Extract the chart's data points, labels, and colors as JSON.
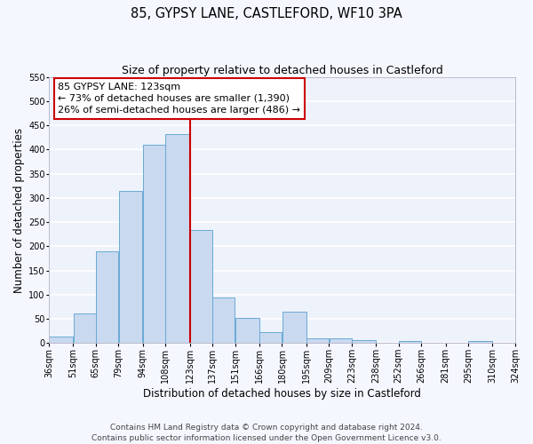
{
  "title": "85, GYPSY LANE, CASTLEFORD, WF10 3PA",
  "subtitle": "Size of property relative to detached houses in Castleford",
  "xlabel": "Distribution of detached houses by size in Castleford",
  "ylabel": "Number of detached properties",
  "bar_color": "#c9d9f0",
  "bar_edge_color": "#6aaad4",
  "background_color": "#eef2fb",
  "grid_color": "#ffffff",
  "bins": [
    36,
    51,
    65,
    79,
    94,
    108,
    123,
    137,
    151,
    166,
    180,
    195,
    209,
    223,
    238,
    252,
    266,
    281,
    295,
    310,
    324
  ],
  "counts": [
    13,
    61,
    190,
    315,
    410,
    432,
    234,
    95,
    53,
    23,
    65,
    10,
    10,
    7,
    0,
    4,
    0,
    0,
    4,
    0
  ],
  "bin_labels": [
    "36sqm",
    "51sqm",
    "65sqm",
    "79sqm",
    "94sqm",
    "108sqm",
    "123sqm",
    "137sqm",
    "151sqm",
    "166sqm",
    "180sqm",
    "195sqm",
    "209sqm",
    "223sqm",
    "238sqm",
    "252sqm",
    "266sqm",
    "281sqm",
    "295sqm",
    "310sqm",
    "324sqm"
  ],
  "vline_x": 123,
  "vline_color": "#cc0000",
  "ylim": [
    0,
    550
  ],
  "yticks": [
    0,
    50,
    100,
    150,
    200,
    250,
    300,
    350,
    400,
    450,
    500,
    550
  ],
  "annotation_title": "85 GYPSY LANE: 123sqm",
  "annotation_line1": "← 73% of detached houses are smaller (1,390)",
  "annotation_line2": "26% of semi-detached houses are larger (486) →",
  "annotation_box_color": "#ffffff",
  "annotation_border_color": "#cc0000",
  "footer_line1": "Contains HM Land Registry data © Crown copyright and database right 2024.",
  "footer_line2": "Contains public sector information licensed under the Open Government Licence v3.0.",
  "title_fontsize": 10.5,
  "subtitle_fontsize": 9,
  "axis_label_fontsize": 8.5,
  "tick_fontsize": 7,
  "annotation_fontsize": 8,
  "footer_fontsize": 6.5,
  "fig_bg": "#f5f7ff"
}
